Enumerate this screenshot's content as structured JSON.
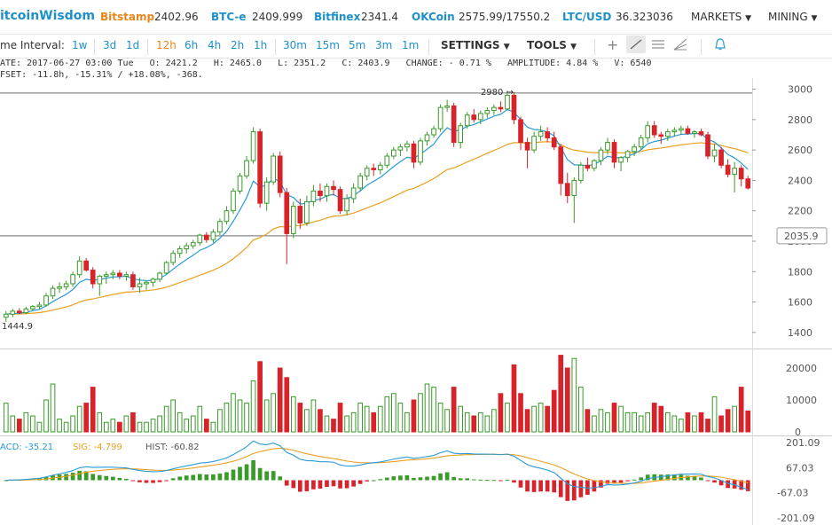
{
  "header": {
    "logo": "itcoinWisdom",
    "exchanges": [
      {
        "name": "Bitstamp",
        "price": "2402.96"
      },
      {
        "name": "BTC-e",
        "price": "2409.999"
      },
      {
        "name": "Bitfinex",
        "price": "2341.4"
      },
      {
        "name": "OKCoin",
        "price": "2575.99/17550.2"
      },
      {
        "name": "LTC/USD",
        "price": "36.323036"
      }
    ],
    "menus": [
      "MARKETS",
      "MINING"
    ]
  },
  "toolbar": {
    "label": "me Interval:",
    "intervals": [
      "1w",
      "3d",
      "1d",
      "12h",
      "6h",
      "4h",
      "2h",
      "1h",
      "30m",
      "15m",
      "5m",
      "3m",
      "1m"
    ],
    "active_interval": "12h",
    "settings": "SETTINGS",
    "tools": "TOOLS"
  },
  "info": {
    "line1": "ATE: 2017-06-27 03:00 Tue   O: 2421.2   H: 2465.0   L: 2351.2   C: 2403.9   CHANGE: - 0.71 %   AMPLITUDE: 4.84 %   V: 6540",
    "line2": "FSET: -11.8h, -15.31% / +18.08%, -368."
  },
  "colors": {
    "up": "#3a9a2a",
    "down": "#d8232a",
    "ma_fast": "#2a9ad8",
    "ma_slow": "#e8a020",
    "macd": "#2a9ad8",
    "sig": "#e8a020"
  },
  "chart_data": [
    {
      "type": "candlestick",
      "ylim": [
        1300,
        3050
      ],
      "yticks": [
        1400,
        1600,
        1800,
        2000,
        2200,
        2400,
        2600,
        2800,
        3000
      ],
      "hlines": [
        2975,
        2035.9
      ],
      "price_label": "2035.9",
      "annotations": [
        {
          "text": "2980",
          "value": 2980
        },
        {
          "text": "1444.9",
          "value": 1444.9
        }
      ],
      "candles": [
        [
          1500,
          1540,
          1470,
          1520
        ],
        [
          1520,
          1555,
          1500,
          1540
        ],
        [
          1540,
          1560,
          1520,
          1530
        ],
        [
          1530,
          1570,
          1520,
          1555
        ],
        [
          1555,
          1580,
          1540,
          1570
        ],
        [
          1570,
          1600,
          1550,
          1580
        ],
        [
          1580,
          1660,
          1570,
          1640
        ],
        [
          1640,
          1710,
          1620,
          1690
        ],
        [
          1690,
          1730,
          1660,
          1700
        ],
        [
          1700,
          1740,
          1680,
          1720
        ],
        [
          1720,
          1800,
          1700,
          1780
        ],
        [
          1780,
          1900,
          1760,
          1870
        ],
        [
          1870,
          1890,
          1800,
          1810
        ],
        [
          1810,
          1830,
          1690,
          1720
        ],
        [
          1720,
          1780,
          1640,
          1770
        ],
        [
          1770,
          1800,
          1720,
          1780
        ],
        [
          1780,
          1810,
          1750,
          1790
        ],
        [
          1790,
          1810,
          1750,
          1770
        ],
        [
          1770,
          1800,
          1740,
          1780
        ],
        [
          1780,
          1800,
          1680,
          1700
        ],
        [
          1700,
          1760,
          1660,
          1720
        ],
        [
          1720,
          1740,
          1680,
          1730
        ],
        [
          1730,
          1760,
          1700,
          1750
        ],
        [
          1750,
          1800,
          1730,
          1790
        ],
        [
          1790,
          1870,
          1780,
          1860
        ],
        [
          1860,
          1940,
          1840,
          1920
        ],
        [
          1920,
          1970,
          1890,
          1950
        ],
        [
          1950,
          1990,
          1920,
          1970
        ],
        [
          1970,
          2010,
          1950,
          1990
        ],
        [
          1990,
          2050,
          1970,
          2040
        ],
        [
          2040,
          2060,
          1990,
          2010
        ],
        [
          2010,
          2080,
          1990,
          2060
        ],
        [
          2060,
          2150,
          2040,
          2130
        ],
        [
          2130,
          2230,
          2110,
          2200
        ],
        [
          2200,
          2350,
          2180,
          2330
        ],
        [
          2330,
          2450,
          2310,
          2430
        ],
        [
          2430,
          2560,
          2410,
          2530
        ],
        [
          2530,
          2750,
          2510,
          2720
        ],
        [
          2720,
          2740,
          2220,
          2250
        ],
        [
          2250,
          2420,
          2200,
          2390
        ],
        [
          2390,
          2580,
          2370,
          2560
        ],
        [
          2560,
          2590,
          2290,
          2320
        ],
        [
          2320,
          2350,
          1850,
          2050
        ],
        [
          2050,
          2260,
          2020,
          2230
        ],
        [
          2230,
          2280,
          2080,
          2120
        ],
        [
          2120,
          2300,
          2100,
          2260
        ],
        [
          2260,
          2370,
          2230,
          2330
        ],
        [
          2330,
          2380,
          2260,
          2300
        ],
        [
          2300,
          2380,
          2260,
          2360
        ],
        [
          2360,
          2400,
          2300,
          2340
        ],
        [
          2340,
          2360,
          2180,
          2200
        ],
        [
          2200,
          2310,
          2170,
          2280
        ],
        [
          2280,
          2380,
          2250,
          2350
        ],
        [
          2350,
          2450,
          2330,
          2430
        ],
        [
          2430,
          2500,
          2400,
          2480
        ],
        [
          2480,
          2510,
          2430,
          2470
        ],
        [
          2470,
          2520,
          2440,
          2500
        ],
        [
          2500,
          2580,
          2480,
          2560
        ],
        [
          2560,
          2620,
          2540,
          2600
        ],
        [
          2600,
          2640,
          2560,
          2620
        ],
        [
          2620,
          2660,
          2590,
          2640
        ],
        [
          2640,
          2660,
          2480,
          2520
        ],
        [
          2520,
          2680,
          2500,
          2660
        ],
        [
          2660,
          2720,
          2630,
          2700
        ],
        [
          2700,
          2760,
          2680,
          2740
        ],
        [
          2740,
          2900,
          2720,
          2880
        ],
        [
          2880,
          2930,
          2850,
          2890
        ],
        [
          2890,
          2910,
          2620,
          2650
        ],
        [
          2650,
          2780,
          2610,
          2760
        ],
        [
          2760,
          2850,
          2740,
          2830
        ],
        [
          2830,
          2870,
          2780,
          2800
        ],
        [
          2800,
          2860,
          2770,
          2840
        ],
        [
          2840,
          2880,
          2810,
          2860
        ],
        [
          2860,
          2900,
          2830,
          2880
        ],
        [
          2880,
          2920,
          2850,
          2870
        ],
        [
          2870,
          2990,
          2860,
          2960
        ],
        [
          2960,
          2980,
          2770,
          2800
        ],
        [
          2800,
          2820,
          2600,
          2650
        ],
        [
          2650,
          2680,
          2480,
          2600
        ],
        [
          2600,
          2720,
          2580,
          2690
        ],
        [
          2690,
          2760,
          2660,
          2720
        ],
        [
          2720,
          2750,
          2650,
          2680
        ],
        [
          2680,
          2720,
          2600,
          2620
        ],
        [
          2620,
          2640,
          2300,
          2380
        ],
        [
          2380,
          2450,
          2250,
          2300
        ],
        [
          2300,
          2420,
          2120,
          2400
        ],
        [
          2400,
          2520,
          2380,
          2500
        ],
        [
          2500,
          2550,
          2460,
          2480
        ],
        [
          2480,
          2540,
          2460,
          2530
        ],
        [
          2530,
          2620,
          2500,
          2600
        ],
        [
          2600,
          2680,
          2570,
          2650
        ],
        [
          2650,
          2670,
          2480,
          2520
        ],
        [
          2520,
          2560,
          2460,
          2550
        ],
        [
          2550,
          2600,
          2520,
          2590
        ],
        [
          2590,
          2640,
          2560,
          2620
        ],
        [
          2620,
          2700,
          2600,
          2680
        ],
        [
          2680,
          2790,
          2650,
          2760
        ],
        [
          2760,
          2790,
          2680,
          2700
        ],
        [
          2700,
          2720,
          2640,
          2690
        ],
        [
          2690,
          2740,
          2660,
          2720
        ],
        [
          2720,
          2750,
          2690,
          2730
        ],
        [
          2730,
          2760,
          2700,
          2740
        ],
        [
          2740,
          2760,
          2700,
          2710
        ],
        [
          2710,
          2730,
          2680,
          2720
        ],
        [
          2720,
          2740,
          2690,
          2700
        ],
        [
          2700,
          2720,
          2540,
          2560
        ],
        [
          2560,
          2640,
          2520,
          2600
        ],
        [
          2600,
          2620,
          2480,
          2500
        ],
        [
          2500,
          2540,
          2420,
          2440
        ],
        [
          2440,
          2520,
          2320,
          2480
        ],
        [
          2480,
          2500,
          2360,
          2410
        ],
        [
          2410,
          2430,
          2340,
          2350
        ]
      ]
    },
    {
      "type": "bar",
      "title": "volume",
      "ylim": [
        0,
        25000
      ],
      "yticks": [
        0,
        10000,
        20000
      ],
      "values": [
        9000,
        5000,
        4000,
        6000,
        5000,
        3000,
        10000,
        15000,
        4000,
        3000,
        5000,
        8000,
        9000,
        14000,
        6000,
        3000,
        4000,
        3000,
        5000,
        6000,
        3000,
        3000,
        4000,
        5000,
        8000,
        10000,
        6000,
        4000,
        5000,
        8000,
        4000,
        3000,
        7000,
        9000,
        12000,
        10000,
        9000,
        16000,
        22000,
        10000,
        12000,
        20000,
        17000,
        11000,
        9000,
        7000,
        10000,
        7000,
        5000,
        4000,
        9000,
        5000,
        6000,
        9000,
        8000,
        6000,
        8000,
        11000,
        12000,
        9000,
        6000,
        10000,
        12000,
        15000,
        14000,
        9000,
        7000,
        14000,
        8000,
        6000,
        5000,
        6000,
        5000,
        7000,
        12000,
        9000,
        21000,
        12000,
        7000,
        8000,
        9000,
        8000,
        13000,
        24000,
        20000,
        23000,
        14000,
        7000,
        5000,
        7000,
        6000,
        9000,
        8000,
        6000,
        6000,
        5000,
        6000,
        9000,
        8000,
        6000,
        5000,
        4000,
        6000,
        5000,
        6000,
        4000,
        11000,
        5000,
        7000,
        8000,
        14000,
        6540
      ]
    },
    {
      "type": "macd",
      "ylim": [
        -230,
        230
      ],
      "yticks": [
        "201.09",
        "67.03",
        "-67.03",
        "-201.09"
      ],
      "labels": {
        "macd": "ACD: -35.21",
        "sig": "SIG: -4.799",
        "hist": "HIST: -60.82"
      }
    }
  ]
}
